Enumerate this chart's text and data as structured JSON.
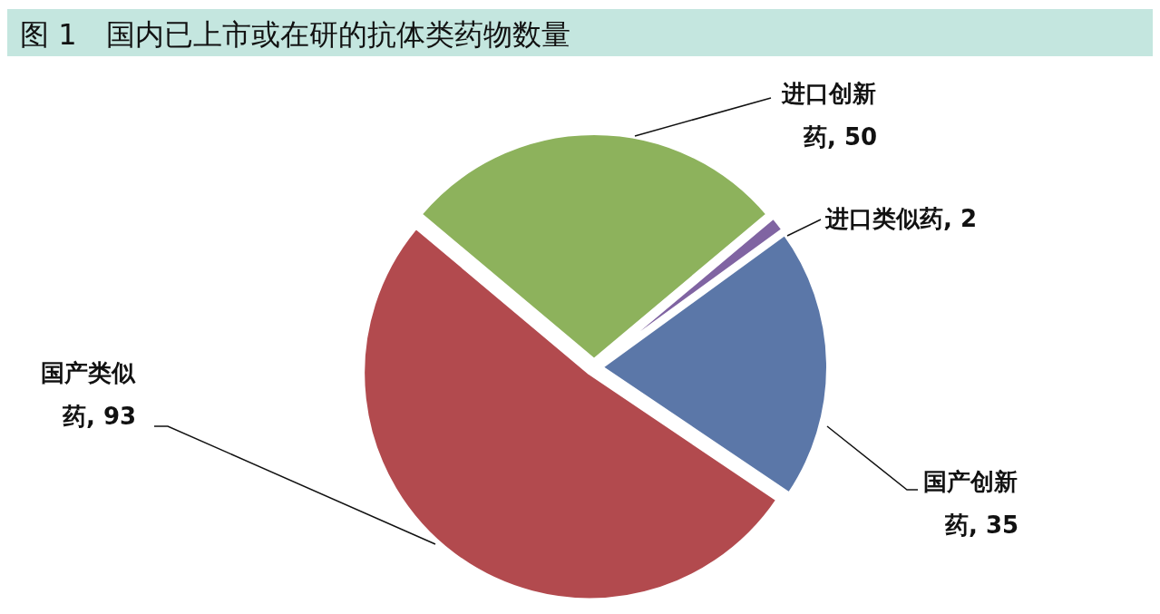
{
  "chart_data": {
    "type": "pie",
    "title": "图 1　国内已上市或在研的抗体类药物数量",
    "categories": [
      "进口创新药",
      "进口类似药",
      "国产创新药",
      "国产类似药"
    ],
    "values": [
      50,
      2,
      35,
      93
    ],
    "colors": [
      "#8db25c",
      "#8064a2",
      "#5b77a8",
      "#b24a4e"
    ],
    "value_labels": [
      ", 50",
      ", 2",
      ", 35",
      ", 93"
    ],
    "legend": false
  }
}
